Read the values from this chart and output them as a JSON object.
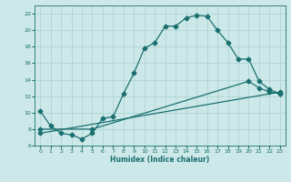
{
  "xlabel": "Humidex (Indice chaleur)",
  "bg_color": "#cde8e8",
  "grid_color": "#aad0d0",
  "line_color": "#1a7070",
  "xlim": [
    -0.5,
    23.5
  ],
  "ylim": [
    6,
    23
  ],
  "yticks": [
    6,
    8,
    10,
    12,
    14,
    16,
    18,
    20,
    22
  ],
  "xticks": [
    0,
    1,
    2,
    3,
    4,
    5,
    6,
    7,
    8,
    9,
    10,
    11,
    12,
    13,
    14,
    15,
    16,
    17,
    18,
    19,
    20,
    21,
    22,
    23
  ],
  "line1_x": [
    0,
    1,
    2,
    3,
    4,
    5,
    6,
    7,
    8,
    9,
    10,
    11,
    12,
    13,
    14,
    15,
    16,
    17,
    18,
    19,
    20,
    21,
    22,
    23
  ],
  "line1_y": [
    10.2,
    8.4,
    7.5,
    7.3,
    6.8,
    7.5,
    9.3,
    9.5,
    12.3,
    14.8,
    17.8,
    18.5,
    20.5,
    20.5,
    21.5,
    21.8,
    21.7,
    20.0,
    18.5,
    16.5,
    16.5,
    13.8,
    12.8,
    12.3
  ],
  "line2_x": [
    0,
    5,
    20,
    21,
    22,
    23
  ],
  "line2_y": [
    8.0,
    8.0,
    13.8,
    13.0,
    12.5,
    12.3
  ],
  "line3_x": [
    0,
    23
  ],
  "line3_y": [
    7.5,
    12.5
  ],
  "marker_size": 2.5,
  "linewidth": 0.9
}
